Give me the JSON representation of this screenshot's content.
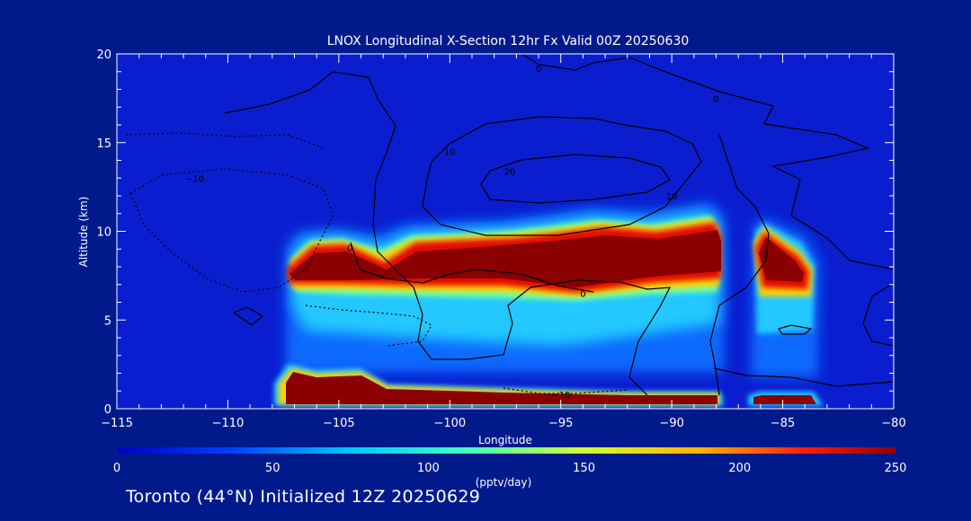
{
  "chart_data": {
    "type": "heatmap",
    "title": "LNOX Longitudinal X-Section 12hr  Fx Valid 00Z 20250630",
    "xlabel": "Longitude",
    "ylabel": "Altitude (km)",
    "xlim": [
      -115,
      -80
    ],
    "ylim": [
      0,
      20
    ],
    "x_ticks": [
      -115,
      -110,
      -105,
      -100,
      -95,
      -90,
      -85,
      -80
    ],
    "x_tick_labels": [
      "−115",
      "−110",
      "−105",
      "−100",
      "−95",
      "−90",
      "−85",
      "−80"
    ],
    "y_ticks": [
      0,
      5,
      10,
      15,
      20
    ],
    "y_tick_labels": [
      "0",
      "5",
      "10",
      "15",
      "20"
    ],
    "colorbar": {
      "range": [
        0,
        250
      ],
      "ticks": [
        0,
        50,
        100,
        150,
        200,
        250
      ],
      "tick_labels": [
        "0",
        "50",
        "100",
        "150",
        "200",
        "250"
      ],
      "label": "(pptv/day)"
    },
    "regions": [
      {
        "x_range": [
          -107.5,
          -88
        ],
        "z_range": [
          2.5,
          11
        ],
        "peak": 250
      },
      {
        "x_range": [
          -86.5,
          -83.5
        ],
        "z_range": [
          2.5,
          10.5
        ],
        "peak": 250
      },
      {
        "x_range": [
          -107.5,
          -83.5
        ],
        "z_range": [
          0.3,
          2.4
        ],
        "peak": 250
      }
    ],
    "contour_labels": [
      {
        "text": "0",
        "x": -96,
        "z": 19.2
      },
      {
        "text": "0",
        "x": -88,
        "z": 17.5
      },
      {
        "text": "0",
        "x": -94,
        "z": 6.5
      },
      {
        "text": "0",
        "x": -104.5,
        "z": 9.1
      },
      {
        "text": "10",
        "x": -100,
        "z": 14.5
      },
      {
        "text": "10",
        "x": -90,
        "z": 12
      },
      {
        "text": "20",
        "x": -97.3,
        "z": 13.4
      },
      {
        "text": "−10",
        "x": -111.5,
        "z": 13
      },
      {
        "text": "−10",
        "x": -95,
        "z": 0.8
      }
    ]
  },
  "footer": {
    "text": "Toronto (44°N) Initialized 12Z 20250629"
  },
  "colors": {
    "background": "#001a8c",
    "plot_background": "#0a1ecf",
    "axis": "#ffffff"
  }
}
